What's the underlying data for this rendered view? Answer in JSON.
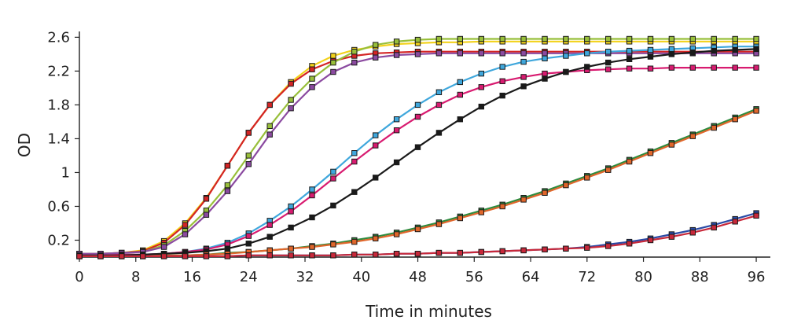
{
  "chart_data": {
    "type": "line",
    "title": "",
    "xlabel": "Time in minutes",
    "ylabel": "OD",
    "xlim": [
      0,
      98
    ],
    "ylim": [
      0,
      2.65
    ],
    "x_ticks": [
      0,
      8,
      16,
      24,
      32,
      40,
      48,
      56,
      64,
      72,
      80,
      88,
      96
    ],
    "x_tick_labels": [
      "0",
      "8",
      "16",
      "24",
      "32",
      "40",
      "48",
      "56",
      "64",
      "72",
      "80",
      "88",
      "96"
    ],
    "y_ticks": [
      0.2,
      0.6,
      1,
      1.4,
      1.8,
      2.2,
      2.6
    ],
    "y_tick_labels": [
      "0.2",
      "0.6",
      "1",
      "1.4",
      "1.8",
      "2.2",
      "2.6"
    ],
    "x": [
      0,
      3,
      6,
      9,
      12,
      15,
      18,
      21,
      24,
      27,
      30,
      33,
      36,
      39,
      42,
      45,
      48,
      51,
      54,
      57,
      60,
      63,
      66,
      69,
      72,
      75,
      78,
      81,
      84,
      87,
      90,
      93,
      96
    ],
    "series": [
      {
        "name": "series-yellow",
        "color": "#f2d21b",
        "values": [
          0.04,
          0.04,
          0.05,
          0.08,
          0.19,
          0.4,
          0.7,
          1.08,
          1.47,
          1.8,
          2.07,
          2.26,
          2.38,
          2.45,
          2.49,
          2.52,
          2.53,
          2.54,
          2.54,
          2.55,
          2.55,
          2.55,
          2.55,
          2.55,
          2.55,
          2.55,
          2.55,
          2.55,
          2.55,
          2.55,
          2.55,
          2.55,
          2.55
        ]
      },
      {
        "name": "series-red",
        "color": "#d42424",
        "values": [
          0.04,
          0.04,
          0.05,
          0.07,
          0.17,
          0.38,
          0.69,
          1.08,
          1.47,
          1.8,
          2.05,
          2.22,
          2.32,
          2.38,
          2.41,
          2.42,
          2.43,
          2.43,
          2.43,
          2.43,
          2.43,
          2.43,
          2.43,
          2.43,
          2.43,
          2.43,
          2.43,
          2.43,
          2.43,
          2.43,
          2.43,
          2.43,
          2.43
        ]
      },
      {
        "name": "series-olive",
        "color": "#98bf3a",
        "values": [
          0.04,
          0.04,
          0.05,
          0.06,
          0.14,
          0.31,
          0.55,
          0.85,
          1.2,
          1.55,
          1.86,
          2.11,
          2.3,
          2.43,
          2.51,
          2.55,
          2.57,
          2.58,
          2.58,
          2.58,
          2.58,
          2.58,
          2.58,
          2.58,
          2.58,
          2.58,
          2.58,
          2.58,
          2.58,
          2.58,
          2.58,
          2.58,
          2.58
        ]
      },
      {
        "name": "series-purple",
        "color": "#8b4aa0",
        "values": [
          0.04,
          0.04,
          0.05,
          0.06,
          0.12,
          0.27,
          0.5,
          0.78,
          1.1,
          1.45,
          1.76,
          2.01,
          2.19,
          2.3,
          2.36,
          2.39,
          2.4,
          2.41,
          2.41,
          2.41,
          2.41,
          2.41,
          2.41,
          2.41,
          2.41,
          2.41,
          2.41,
          2.41,
          2.41,
          2.41,
          2.41,
          2.41,
          2.41
        ]
      },
      {
        "name": "series-cyan",
        "color": "#3fa7dc",
        "values": [
          0.02,
          0.02,
          0.03,
          0.03,
          0.04,
          0.06,
          0.1,
          0.17,
          0.28,
          0.43,
          0.6,
          0.8,
          1.01,
          1.23,
          1.44,
          1.63,
          1.8,
          1.95,
          2.07,
          2.17,
          2.25,
          2.31,
          2.35,
          2.38,
          2.41,
          2.43,
          2.44,
          2.45,
          2.46,
          2.47,
          2.48,
          2.49,
          2.49
        ]
      },
      {
        "name": "series-magenta",
        "color": "#d81b70",
        "values": [
          0.02,
          0.02,
          0.03,
          0.03,
          0.04,
          0.06,
          0.09,
          0.15,
          0.25,
          0.38,
          0.54,
          0.73,
          0.93,
          1.13,
          1.32,
          1.5,
          1.66,
          1.8,
          1.92,
          2.01,
          2.08,
          2.13,
          2.17,
          2.19,
          2.21,
          2.22,
          2.23,
          2.23,
          2.24,
          2.24,
          2.24,
          2.24,
          2.24
        ]
      },
      {
        "name": "series-black",
        "color": "#1a1a1a",
        "values": [
          0.02,
          0.02,
          0.02,
          0.03,
          0.04,
          0.05,
          0.07,
          0.1,
          0.16,
          0.24,
          0.35,
          0.47,
          0.61,
          0.77,
          0.94,
          1.12,
          1.3,
          1.47,
          1.63,
          1.78,
          1.91,
          2.02,
          2.11,
          2.19,
          2.25,
          2.3,
          2.34,
          2.37,
          2.4,
          2.42,
          2.44,
          2.45,
          2.46
        ]
      },
      {
        "name": "series-green",
        "color": "#2e8b3e",
        "values": [
          0.01,
          0.01,
          0.01,
          0.01,
          0.02,
          0.02,
          0.03,
          0.05,
          0.06,
          0.08,
          0.1,
          0.13,
          0.16,
          0.2,
          0.24,
          0.29,
          0.35,
          0.41,
          0.48,
          0.55,
          0.62,
          0.7,
          0.78,
          0.87,
          0.96,
          1.05,
          1.15,
          1.25,
          1.35,
          1.45,
          1.55,
          1.65,
          1.75
        ]
      },
      {
        "name": "series-orange",
        "color": "#e0662b",
        "values": [
          0.01,
          0.01,
          0.01,
          0.01,
          0.02,
          0.02,
          0.03,
          0.04,
          0.06,
          0.08,
          0.1,
          0.12,
          0.15,
          0.18,
          0.22,
          0.27,
          0.33,
          0.39,
          0.46,
          0.53,
          0.6,
          0.68,
          0.76,
          0.85,
          0.94,
          1.03,
          1.13,
          1.23,
          1.33,
          1.43,
          1.53,
          1.63,
          1.73
        ]
      },
      {
        "name": "series-blue",
        "color": "#2a4aa5",
        "values": [
          0.01,
          0.01,
          0.01,
          0.01,
          0.01,
          0.01,
          0.01,
          0.01,
          0.02,
          0.02,
          0.02,
          0.02,
          0.02,
          0.03,
          0.03,
          0.04,
          0.04,
          0.05,
          0.05,
          0.06,
          0.07,
          0.08,
          0.09,
          0.1,
          0.12,
          0.15,
          0.18,
          0.22,
          0.27,
          0.32,
          0.38,
          0.45,
          0.52
        ]
      },
      {
        "name": "series-crimson",
        "color": "#c8283a",
        "values": [
          0.01,
          0.01,
          0.01,
          0.01,
          0.01,
          0.01,
          0.01,
          0.01,
          0.02,
          0.02,
          0.02,
          0.02,
          0.02,
          0.03,
          0.03,
          0.04,
          0.04,
          0.05,
          0.05,
          0.06,
          0.07,
          0.08,
          0.09,
          0.1,
          0.11,
          0.13,
          0.16,
          0.2,
          0.24,
          0.29,
          0.35,
          0.42,
          0.49
        ]
      }
    ]
  }
}
